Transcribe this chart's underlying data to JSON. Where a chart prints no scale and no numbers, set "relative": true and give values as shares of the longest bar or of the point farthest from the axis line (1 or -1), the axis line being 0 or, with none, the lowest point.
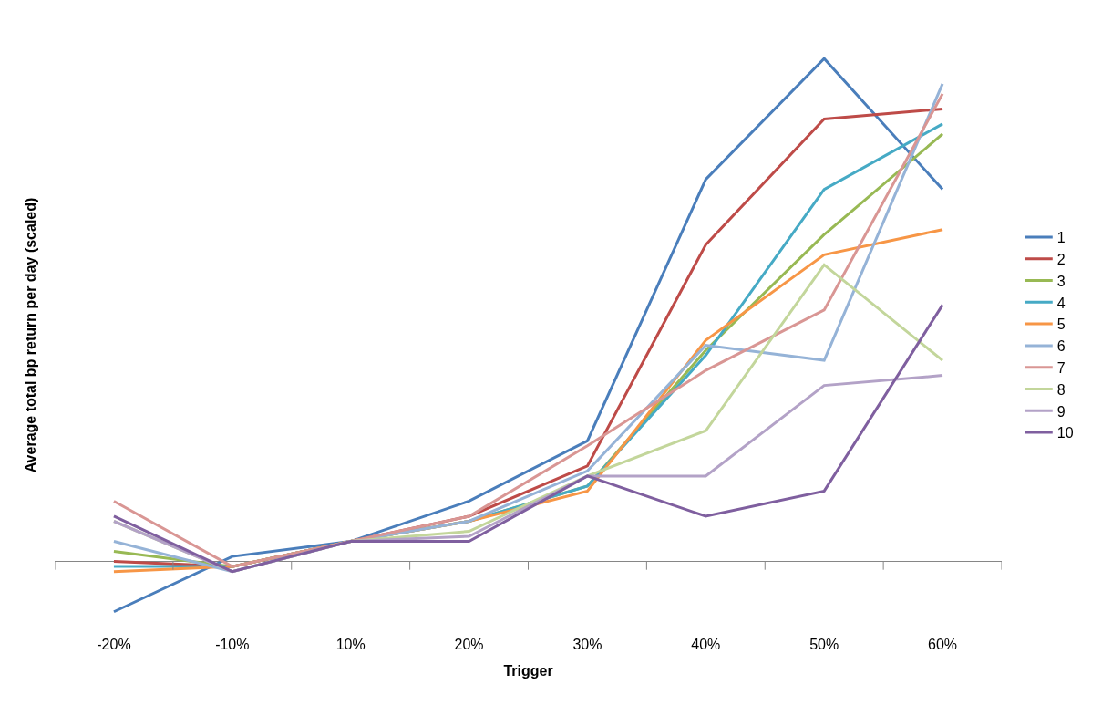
{
  "chart_data": {
    "type": "line",
    "relative": true,
    "xlabel": "Trigger",
    "ylabel": "Average total bp return per day (scaled)",
    "categories": [
      "-20%",
      "-10%",
      "10%",
      "20%",
      "30%",
      "40%",
      "50%",
      "60%"
    ],
    "legend": "right",
    "marker": "none",
    "line_style": "solid",
    "series": [
      {
        "name": "1",
        "color": "#4a7ebb",
        "values": [
          -0.1,
          0.01,
          0.04,
          0.12,
          0.24,
          0.76,
          1,
          0.74
        ]
      },
      {
        "name": "2",
        "color": "#be4b48",
        "values": [
          0,
          -0.01,
          0.04,
          0.09,
          0.19,
          0.63,
          0.88,
          0.9
        ]
      },
      {
        "name": "3",
        "color": "#98b954",
        "values": [
          0.02,
          -0.01,
          0.04,
          0.08,
          0.15,
          0.42,
          0.65,
          0.85
        ]
      },
      {
        "name": "4",
        "color": "#46aac5",
        "values": [
          -0.01,
          -0.01,
          0.04,
          0.08,
          0.15,
          0.41,
          0.74,
          0.87
        ]
      },
      {
        "name": "5",
        "color": "#f79646",
        "values": [
          -0.02,
          -0.01,
          0.04,
          0.08,
          0.14,
          0.44,
          0.61,
          0.66
        ]
      },
      {
        "name": "6",
        "color": "#95b3d7",
        "values": [
          0.04,
          -0.02,
          0.04,
          0.08,
          0.18,
          0.43,
          0.4,
          0.95
        ]
      },
      {
        "name": "7",
        "color": "#d99694",
        "values": [
          0.12,
          -0.01,
          0.04,
          0.09,
          0.23,
          0.38,
          0.5,
          0.93
        ]
      },
      {
        "name": "8",
        "color": "#c3d69b",
        "values": [
          0.08,
          -0.02,
          0.04,
          0.06,
          0.17,
          0.26,
          0.59,
          0.4
        ]
      },
      {
        "name": "9",
        "color": "#b3a2c7",
        "values": [
          0.08,
          -0.02,
          0.04,
          0.05,
          0.17,
          0.17,
          0.35,
          0.37
        ]
      },
      {
        "name": "10",
        "color": "#7f5f9f",
        "values": [
          0.09,
          -0.02,
          0.04,
          0.04,
          0.17,
          0.09,
          0.14,
          0.51
        ]
      }
    ]
  }
}
